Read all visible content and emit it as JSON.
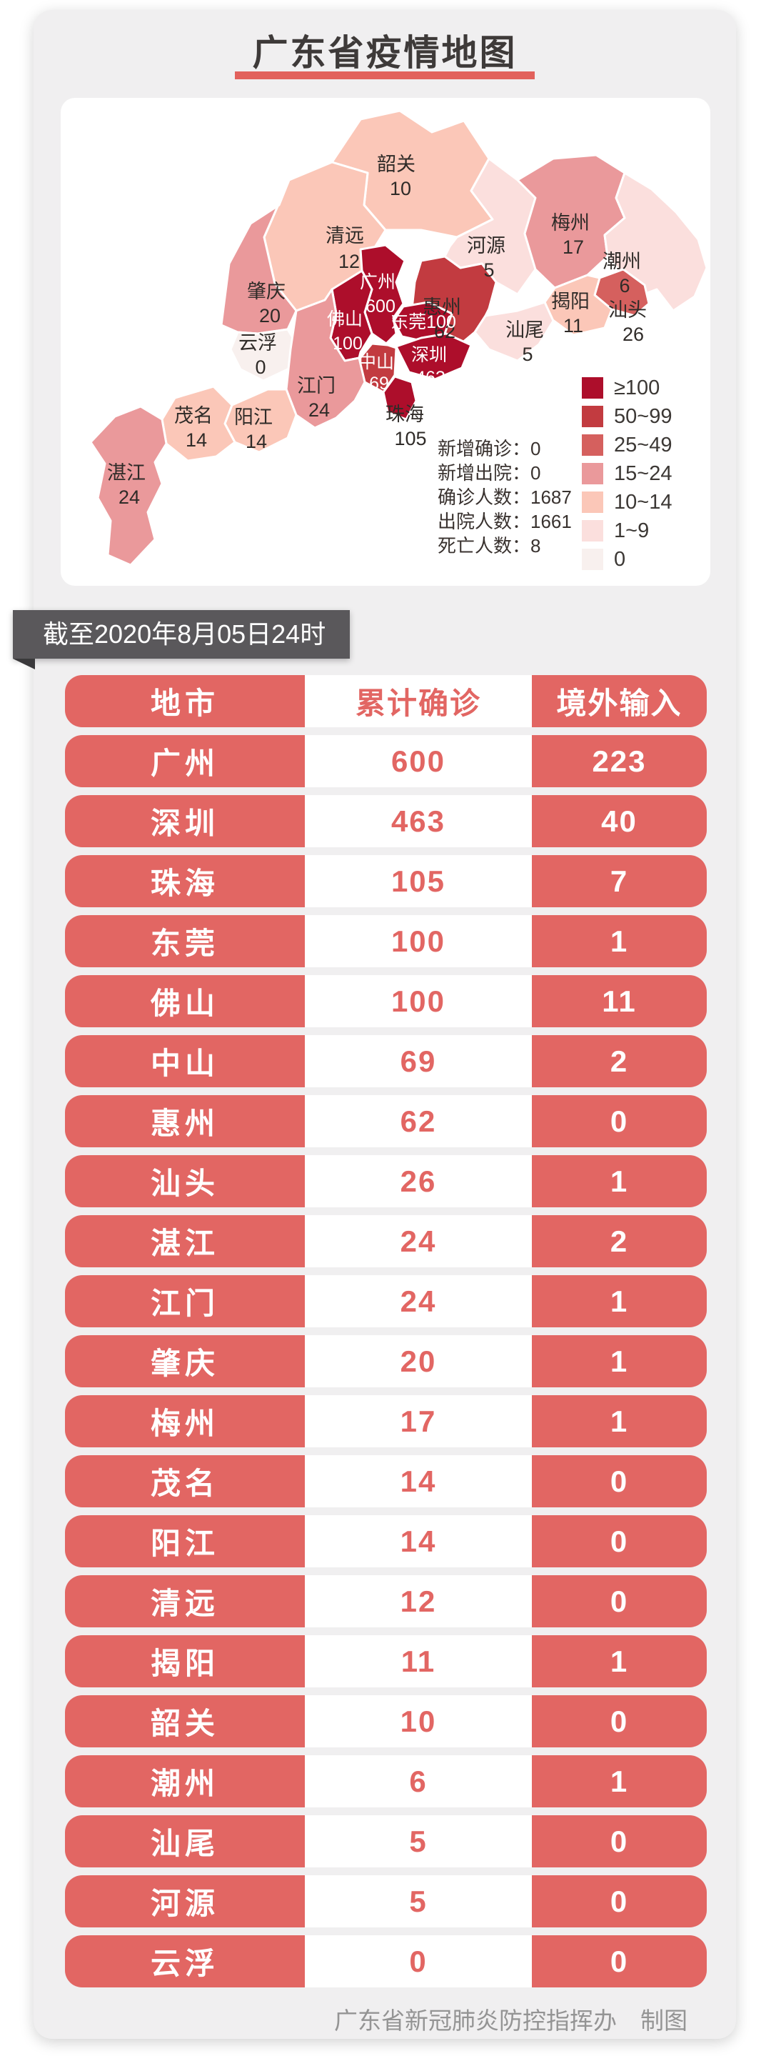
{
  "title": "广东省疫情地图",
  "map_card": {
    "stats_lines": [
      "新增确诊：0",
      "新增出院：0",
      "确诊人数：1687",
      "出院人数：1661",
      "死亡人数：8"
    ],
    "legend": [
      {
        "label": "≥100",
        "color": "#ad0e2b"
      },
      {
        "label": "50~99",
        "color": "#c23b40"
      },
      {
        "label": "25~49",
        "color": "#d5605e"
      },
      {
        "label": "15~24",
        "color": "#ea999b"
      },
      {
        "label": "10~14",
        "color": "#fbc7b8"
      },
      {
        "label": "1~9",
        "color": "#fbdfdd"
      },
      {
        "label": "0",
        "color": "#f8f0ee"
      }
    ],
    "cities": [
      {
        "key": "shaoguan",
        "name": "韶关",
        "value": "10",
        "band": "10~14",
        "label": "dark"
      },
      {
        "key": "qingyuan",
        "name": "清远",
        "value": "12",
        "band": "10~14",
        "label": "dark"
      },
      {
        "key": "heyuan",
        "name": "河源",
        "value": "5",
        "band": "1~9",
        "label": "dark"
      },
      {
        "key": "meizhou",
        "name": "梅州",
        "value": "17",
        "band": "15~24",
        "label": "dark"
      },
      {
        "key": "chaozhou",
        "name": "潮州",
        "value": "6",
        "band": "1~9",
        "label": "dark"
      },
      {
        "key": "shantou",
        "name": "汕头",
        "value": "26",
        "band": "25~49",
        "label": "dark"
      },
      {
        "key": "jieyang",
        "name": "揭阳",
        "value": "11",
        "band": "10~14",
        "label": "dark"
      },
      {
        "key": "shanwei",
        "name": "汕尾",
        "value": "5",
        "band": "1~9",
        "label": "dark"
      },
      {
        "key": "huizhou",
        "name": "惠州",
        "value": "62",
        "band": "50~99",
        "label": "dark"
      },
      {
        "key": "zhaoqing",
        "name": "肇庆",
        "value": "20",
        "band": "15~24",
        "label": "dark"
      },
      {
        "key": "yunfu",
        "name": "云浮",
        "value": "0",
        "band": "0",
        "label": "dark"
      },
      {
        "key": "guangzhou",
        "name": "广州",
        "value": "600",
        "band": "≥100",
        "label": "light"
      },
      {
        "key": "foshan",
        "name": "佛山",
        "value": "100",
        "band": "≥100",
        "label": "light"
      },
      {
        "key": "dongguan",
        "name": "东莞",
        "value": "100",
        "band": "≥100",
        "label": "light",
        "inline": true
      },
      {
        "key": "shenzhen",
        "name": "深圳",
        "value": "463",
        "band": "≥100",
        "label": "light"
      },
      {
        "key": "zhongshan",
        "name": "中山",
        "value": "69",
        "band": "50~99",
        "label": "light"
      },
      {
        "key": "zhuhai",
        "name": "珠海",
        "value": "105",
        "band": "≥100",
        "label": "dark"
      },
      {
        "key": "jiangmen",
        "name": "江门",
        "value": "24",
        "band": "15~24",
        "label": "dark"
      },
      {
        "key": "yangjiang",
        "name": "阳江",
        "value": "14",
        "band": "10~14",
        "label": "dark"
      },
      {
        "key": "maoming",
        "name": "茂名",
        "value": "14",
        "band": "10~14",
        "label": "dark"
      },
      {
        "key": "zhanjiang",
        "name": "湛江",
        "value": "24",
        "band": "15~24",
        "label": "dark"
      }
    ]
  },
  "ribbon": {
    "text": "截至2020年8月05日24时"
  },
  "table": {
    "headers": [
      "地市",
      "累计确诊",
      "境外输入"
    ],
    "rows": [
      [
        "广州",
        "600",
        "223"
      ],
      [
        "深圳",
        "463",
        "40"
      ],
      [
        "珠海",
        "105",
        "7"
      ],
      [
        "东莞",
        "100",
        "1"
      ],
      [
        "佛山",
        "100",
        "11"
      ],
      [
        "中山",
        "69",
        "2"
      ],
      [
        "惠州",
        "62",
        "0"
      ],
      [
        "汕头",
        "26",
        "1"
      ],
      [
        "湛江",
        "24",
        "2"
      ],
      [
        "江门",
        "24",
        "1"
      ],
      [
        "肇庆",
        "20",
        "1"
      ],
      [
        "梅州",
        "17",
        "1"
      ],
      [
        "茂名",
        "14",
        "0"
      ],
      [
        "阳江",
        "14",
        "0"
      ],
      [
        "清远",
        "12",
        "0"
      ],
      [
        "揭阳",
        "11",
        "1"
      ],
      [
        "韶关",
        "10",
        "0"
      ],
      [
        "潮州",
        "6",
        "1"
      ],
      [
        "汕尾",
        "5",
        "0"
      ],
      [
        "河源",
        "5",
        "0"
      ],
      [
        "云浮",
        "0",
        "0"
      ]
    ]
  },
  "footer": {
    "credit": "广东省新冠肺炎防控指挥办　制图"
  },
  "colors": {
    "pill_salmon": "#e26663",
    "title_bar_red": "#e2615c",
    "ribbon_gray": "#5a585b",
    "card_gray": "#f0eff0",
    "footer_gray": "#949494"
  },
  "chart_data": {
    "type": "choropleth+table",
    "title": "广东省疫情地图",
    "as_of": "截至2020年8月05日24时",
    "summary": {
      "新增确诊": 0,
      "新增出院": 0,
      "确诊人数": 1687,
      "出院人数": 1661,
      "死亡人数": 8
    },
    "legend_bands": [
      "≥100",
      "50~99",
      "25~49",
      "15~24",
      "10~14",
      "1~9",
      "0"
    ],
    "categories": [
      "广州",
      "深圳",
      "珠海",
      "东莞",
      "佛山",
      "中山",
      "惠州",
      "汕头",
      "湛江",
      "江门",
      "肇庆",
      "梅州",
      "茂名",
      "阳江",
      "清远",
      "揭阳",
      "韶关",
      "潮州",
      "汕尾",
      "河源",
      "云浮"
    ],
    "series": [
      {
        "name": "累计确诊",
        "values": [
          600,
          463,
          105,
          100,
          100,
          69,
          62,
          26,
          24,
          24,
          20,
          17,
          14,
          14,
          12,
          11,
          10,
          6,
          5,
          5,
          0
        ]
      },
      {
        "name": "境外输入",
        "values": [
          223,
          40,
          7,
          1,
          11,
          2,
          0,
          1,
          2,
          1,
          1,
          1,
          0,
          0,
          0,
          1,
          0,
          1,
          0,
          0,
          0
        ]
      }
    ]
  }
}
